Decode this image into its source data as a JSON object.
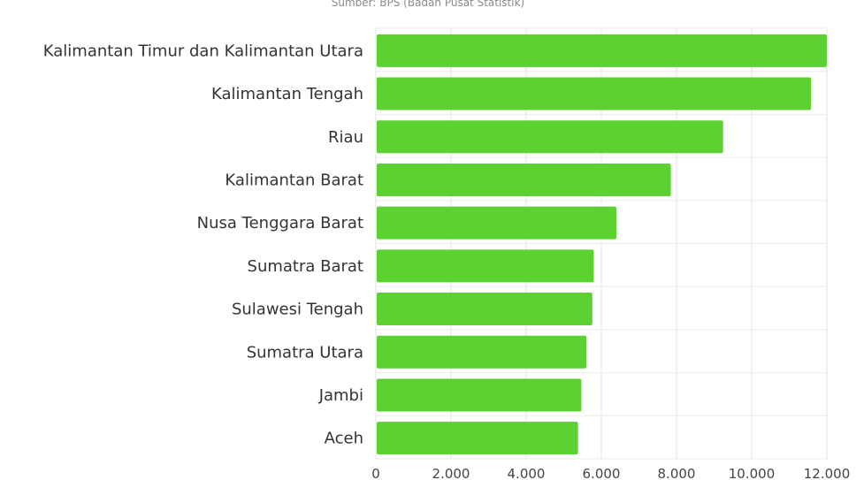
{
  "subtitle": "Sumber: BPS (Badan Pusat Statistik)",
  "chart_data": {
    "type": "bar",
    "orientation": "horizontal",
    "categories": [
      "Kalimantan Timur dan Kalimantan Utara",
      "Kalimantan Tengah",
      "Riau",
      "Kalimantan Barat",
      "Nusa Tenggara Barat",
      "Sumatra Barat",
      "Sulawesi Tengah",
      "Sumatra Utara",
      "Jambi",
      "Aceh"
    ],
    "values": [
      12000,
      11580,
      9240,
      7850,
      6400,
      5800,
      5760,
      5600,
      5470,
      5380
    ],
    "xlim": [
      0,
      12000
    ],
    "xticks": [
      "0",
      "2.000",
      "4.000",
      "6.000",
      "8.000",
      "10.000",
      "12.000"
    ],
    "grid": true,
    "bar_color": "#5cd132"
  }
}
